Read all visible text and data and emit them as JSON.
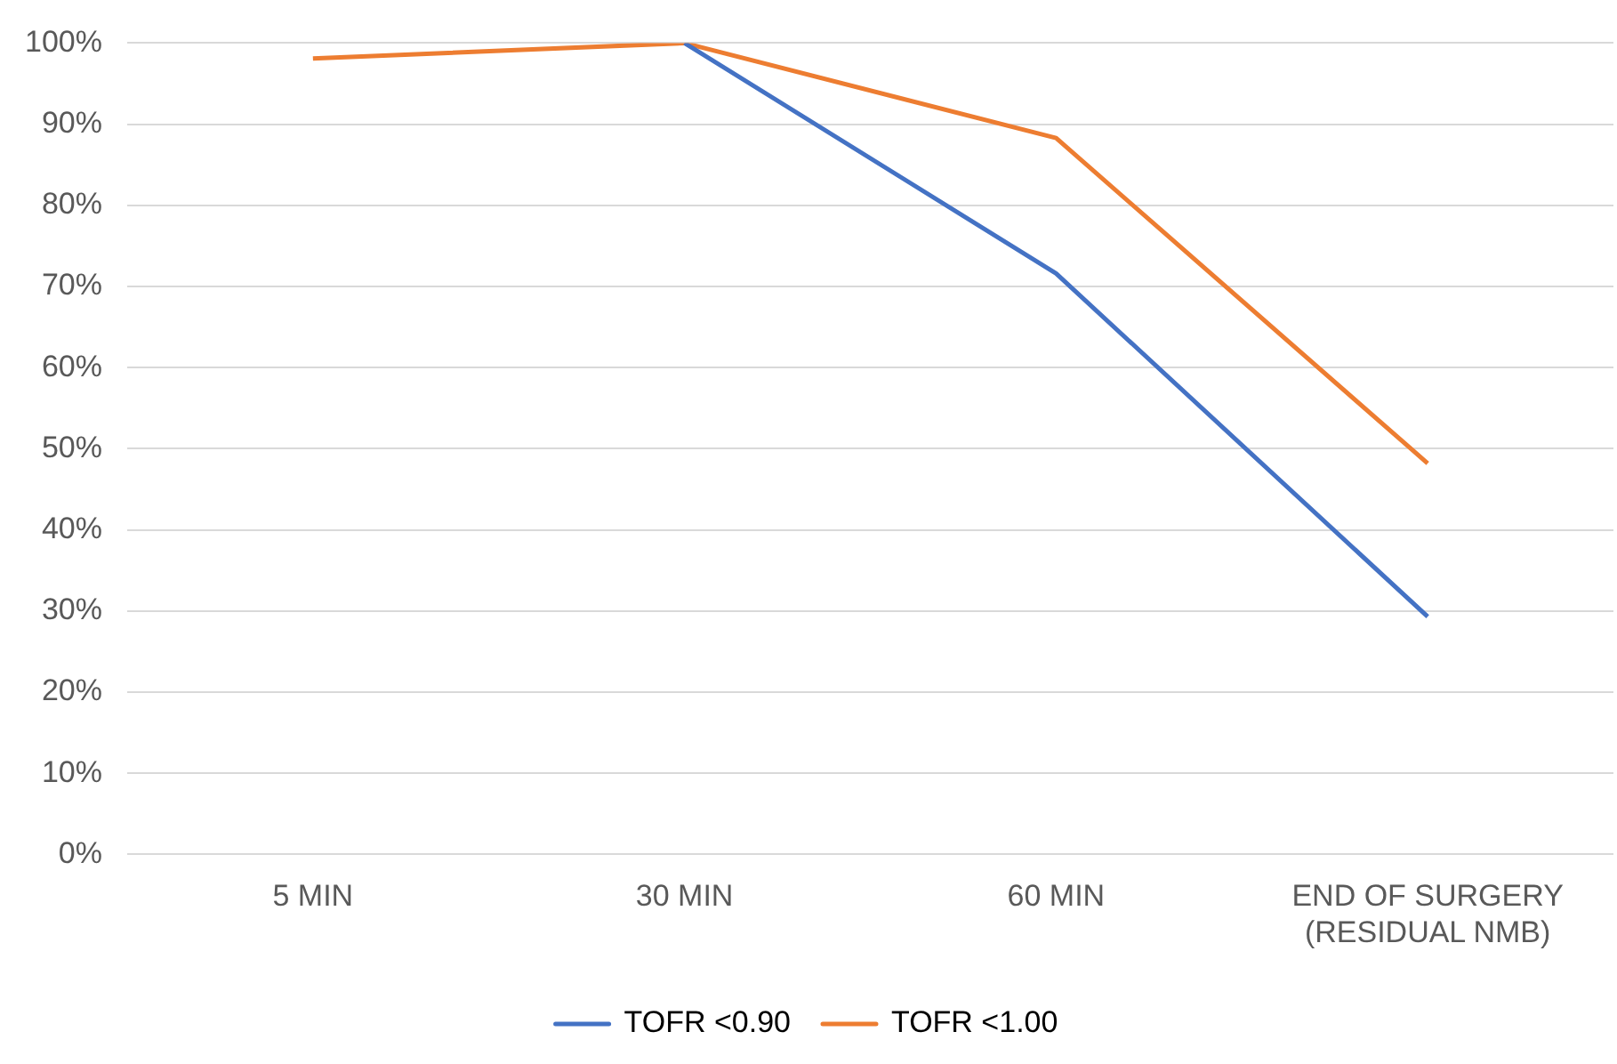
{
  "chart_data": {
    "type": "line",
    "categories": [
      "5 MIN",
      "30 MIN",
      "60 MIN",
      "END OF SURGERY\n(RESIDUAL NMB)"
    ],
    "series": [
      {
        "name": "TOFR <0.90",
        "color": "#4472c4",
        "values": [
          null,
          100,
          71.6,
          29.3
        ]
      },
      {
        "name": "TOFR <1.00",
        "color": "#ed7d31",
        "values": [
          98.1,
          100,
          88.3,
          48.2
        ]
      }
    ],
    "ylim": [
      0,
      100
    ],
    "yticks": [
      {
        "value": 0,
        "label": "0%"
      },
      {
        "value": 10,
        "label": "10%"
      },
      {
        "value": 20,
        "label": "20%"
      },
      {
        "value": 30,
        "label": "30%"
      },
      {
        "value": 40,
        "label": "40%"
      },
      {
        "value": 50,
        "label": "50%"
      },
      {
        "value": 60,
        "label": "60%"
      },
      {
        "value": 70,
        "label": "70%"
      },
      {
        "value": 80,
        "label": "80%"
      },
      {
        "value": 90,
        "label": "90%"
      },
      {
        "value": 100,
        "label": "100%"
      }
    ],
    "grid": "y",
    "legend": "bottom",
    "marker": "none",
    "line_style": "solid"
  }
}
